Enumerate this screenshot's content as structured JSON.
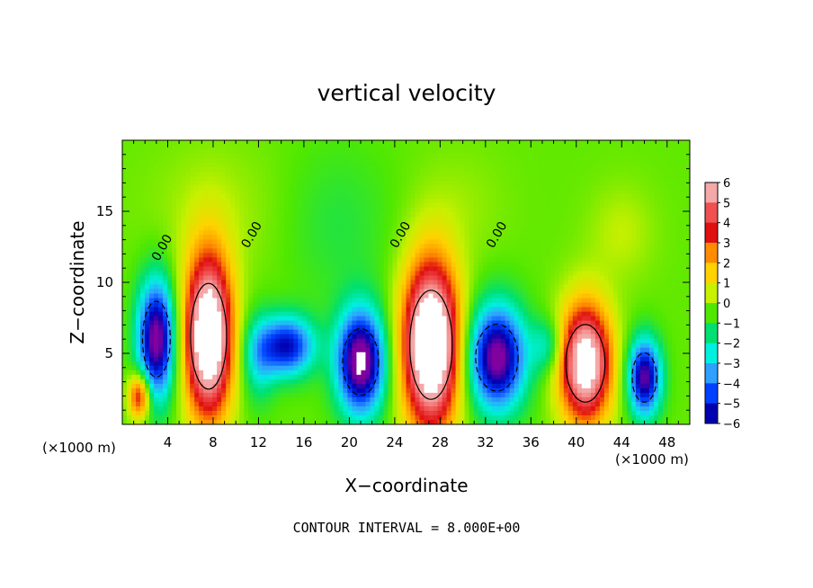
{
  "chart_data": {
    "type": "heatmap",
    "title": "vertical velocity",
    "xlabel": "X−coordinate",
    "ylabel": "Z−coordinate",
    "x_unit": "(×1000 m)",
    "x_unit_right": "(×1000 m)",
    "footer": "CONTOUR INTERVAL = 8.000E+00",
    "xlim": [
      0,
      50
    ],
    "ylim": [
      0,
      20
    ],
    "x_ticks": [
      "4",
      "8",
      "12",
      "16",
      "20",
      "24",
      "28",
      "32",
      "36",
      "40",
      "44",
      "48"
    ],
    "x_tick_values": [
      4,
      8,
      12,
      16,
      20,
      24,
      28,
      32,
      36,
      40,
      44,
      48
    ],
    "y_ticks": [
      "5",
      "10",
      "15"
    ],
    "y_tick_values": [
      5,
      10,
      15
    ],
    "colorbar": {
      "labels": [
        "6",
        "5",
        "4",
        "3",
        "2",
        "1",
        "0",
        "−1",
        "−2",
        "−3",
        "−4",
        "−5",
        "−6"
      ],
      "values": [
        6,
        5,
        4,
        3,
        2,
        1,
        0,
        -1,
        -2,
        -3,
        -4,
        -5,
        -6
      ],
      "colors": [
        "#f4a8a8",
        "#f05050",
        "#e01010",
        "#ff8c00",
        "#ffd200",
        "#c8f000",
        "#50e800",
        "#00e070",
        "#00f0e0",
        "#30a0ff",
        "#0040ff",
        "#0000b0",
        "#8000a0"
      ]
    },
    "contour_labels": [
      {
        "text": "0.00",
        "x": 3.8,
        "y": 12.3
      },
      {
        "text": "0.00",
        "x": 11.7,
        "y": 13.2
      },
      {
        "text": "0.00",
        "x": 24.8,
        "y": 13.2
      },
      {
        "text": "0.00",
        "x": 33.3,
        "y": 13.2
      }
    ],
    "cells": [
      {
        "x": 1.5,
        "y": 2.0,
        "rx": 1.0,
        "ry": 1.7,
        "w": 4.5
      },
      {
        "x": 3.0,
        "y": 6.0,
        "rx": 1.7,
        "ry": 4.3,
        "w": -6.5
      },
      {
        "x": 7.6,
        "y": 6.2,
        "rx": 2.2,
        "ry": 6.0,
        "w": 8.5
      },
      {
        "x": 12.0,
        "y": 4.6,
        "rx": 1.5,
        "ry": 3.2,
        "w": -2.0
      },
      {
        "x": 14.5,
        "y": 5.5,
        "rx": 2.5,
        "ry": 2.2,
        "w": -5.0
      },
      {
        "x": 21.0,
        "y": 4.4,
        "rx": 2.2,
        "ry": 3.8,
        "w": -7.0
      },
      {
        "x": 27.2,
        "y": 5.6,
        "rx": 2.6,
        "ry": 6.2,
        "w": 9.0
      },
      {
        "x": 33.0,
        "y": 4.7,
        "rx": 2.6,
        "ry": 3.8,
        "w": -6.5
      },
      {
        "x": 37.5,
        "y": 5.5,
        "rx": 1.5,
        "ry": 2.0,
        "w": -2.0
      },
      {
        "x": 40.8,
        "y": 4.3,
        "rx": 2.4,
        "ry": 4.4,
        "w": 7.5
      },
      {
        "x": 46.0,
        "y": 3.3,
        "rx": 1.5,
        "ry": 2.8,
        "w": -6.0
      },
      {
        "x": 8.0,
        "y": 15.0,
        "rx": 6.0,
        "ry": 5.0,
        "w": 0.6
      },
      {
        "x": 19.0,
        "y": 14.0,
        "rx": 5.0,
        "ry": 6.0,
        "w": -0.7
      },
      {
        "x": 30.0,
        "y": 15.5,
        "rx": 4.0,
        "ry": 4.0,
        "w": 0.4
      },
      {
        "x": 44.0,
        "y": 13.5,
        "rx": 3.0,
        "ry": 3.5,
        "w": 0.8
      }
    ]
  }
}
